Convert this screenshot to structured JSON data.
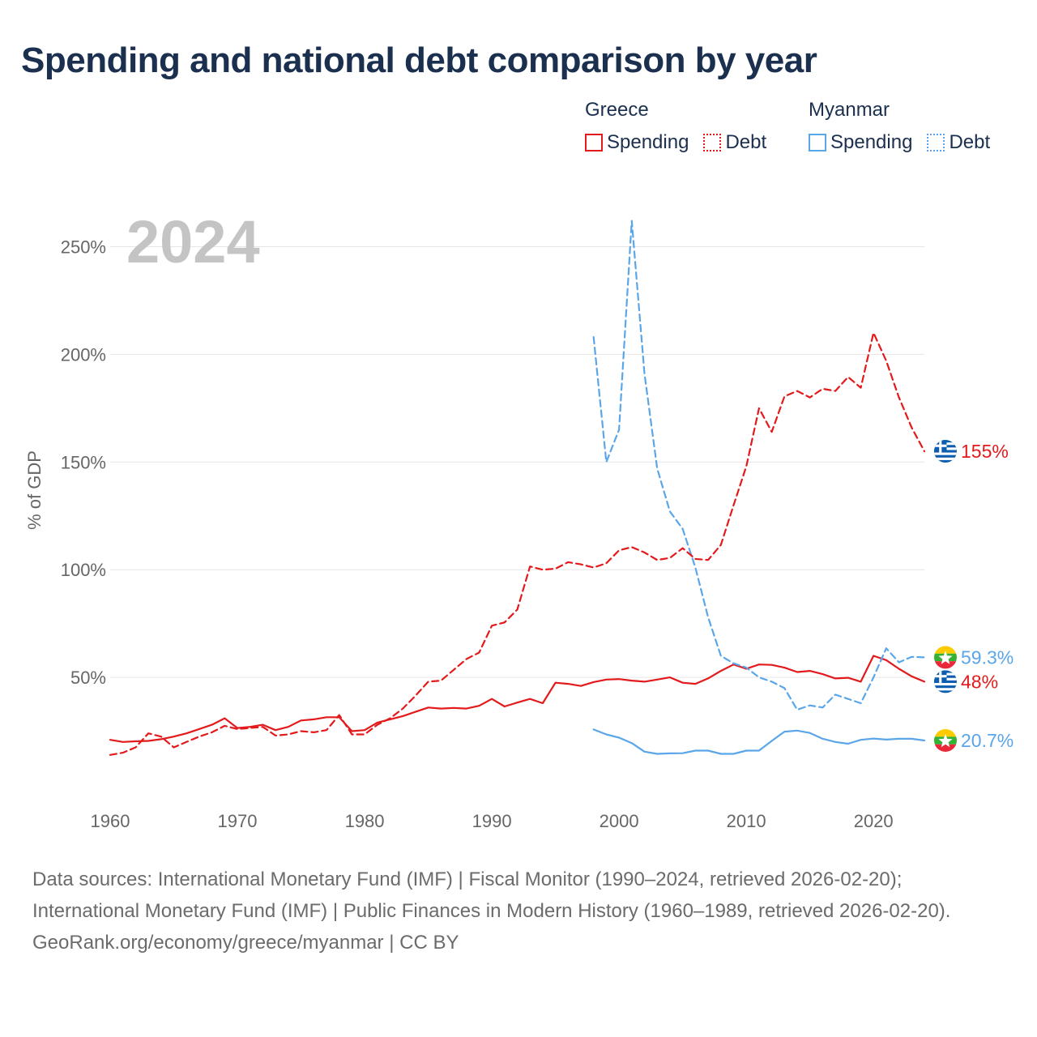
{
  "chart_data": {
    "type": "line",
    "title": "Spending and national debt comparison by year",
    "year_label": "2024",
    "ylabel": "% of GDP",
    "xlabel": "",
    "xlim": [
      1960,
      2024
    ],
    "ylim": [
      0,
      262
    ],
    "x_ticks": [
      1960,
      1970,
      1980,
      1990,
      2000,
      2010,
      2020
    ],
    "x_tick_labels": [
      "1960",
      "1970",
      "1980",
      "1990",
      "2000",
      "2010",
      "2020"
    ],
    "y_ticks": [
      50,
      100,
      150,
      200,
      250
    ],
    "y_tick_labels": [
      "50%",
      "100%",
      "150%",
      "200%",
      "250%"
    ],
    "colors": {
      "greece": "#e31a1c",
      "myanmar": "#5aa6e8"
    },
    "legend": {
      "greece": {
        "country": "Greece",
        "spending": "Spending",
        "debt": "Debt"
      },
      "myanmar": {
        "country": "Myanmar",
        "spending": "Spending",
        "debt": "Debt"
      }
    },
    "series": [
      {
        "name": "Greece Spending",
        "country": "greece",
        "dash": false,
        "start_year": 1960,
        "values": [
          21,
          20,
          20.3,
          20.5,
          21.3,
          22.5,
          24,
          26,
          28,
          31,
          26.5,
          27,
          28,
          25.5,
          27,
          30,
          30.5,
          31.5,
          31.5,
          25,
          25.5,
          29,
          30.5,
          32,
          34,
          36,
          35.5,
          35.8,
          35.5,
          36.8,
          40,
          36.5,
          38.3,
          40,
          38,
          47.5,
          47,
          46,
          47.8,
          49,
          49.2,
          48.5,
          48,
          49,
          50,
          47.5,
          47,
          49.5,
          53,
          56,
          54,
          56,
          55.8,
          54.5,
          52.5,
          53,
          51.5,
          49.5,
          49.8,
          48,
          60,
          58,
          54,
          50.5,
          48
        ],
        "end_label": "48%",
        "flag": "greece"
      },
      {
        "name": "Greece Debt",
        "country": "greece",
        "dash": true,
        "start_year": 1960,
        "values": [
          14,
          15,
          17.5,
          24,
          22.5,
          17.5,
          20,
          22.5,
          24.5,
          27.5,
          26,
          26.5,
          27,
          23,
          23.5,
          25,
          24.5,
          25.5,
          32.5,
          23.5,
          23.5,
          28,
          31,
          35.5,
          41.5,
          48,
          48.5,
          53.5,
          58.5,
          61.5,
          74,
          75.5,
          81.5,
          101.5,
          100,
          100.5,
          103.5,
          102.5,
          101,
          103,
          109,
          110.5,
          108,
          104.5,
          105.5,
          110,
          105,
          104.5,
          111.5,
          130,
          148,
          175,
          164,
          180.5,
          183,
          180,
          184,
          183,
          189.5,
          184.5,
          210,
          197,
          180,
          166,
          155
        ],
        "end_label": "155%",
        "flag": "greece"
      },
      {
        "name": "Myanmar Spending",
        "country": "myanmar",
        "dash": false,
        "start_year": 1998,
        "values": [
          25.8,
          23.5,
          22,
          19.5,
          15.5,
          14.5,
          14.7,
          14.8,
          16,
          16,
          14.5,
          14.5,
          16,
          16,
          20.5,
          24.8,
          25.3,
          24.2,
          21.5,
          20,
          19.2,
          21,
          21.6,
          21.1,
          21.5,
          21.5,
          20.7
        ],
        "end_label": "20.7%",
        "flag": "myanmar"
      },
      {
        "name": "Myanmar Debt",
        "country": "myanmar",
        "dash": true,
        "start_year": 1998,
        "values": [
          208,
          150,
          165,
          262,
          191,
          147,
          127,
          119,
          101,
          78,
          60,
          56.5,
          54.5,
          50,
          48,
          45,
          35,
          37,
          36,
          42,
          40,
          38,
          50,
          63.5,
          57,
          59.5,
          59.3
        ],
        "end_label": "59.3%",
        "flag": "myanmar"
      }
    ]
  },
  "footer": {
    "line1": "Data sources: International Monetary Fund (IMF) | Fiscal Monitor (1990–2024, retrieved 2026-02-20); International Monetary Fund (IMF) | Public Finances in Modern History (1960–1989, retrieved 2026-02-20).",
    "line2": "GeoRank.org/economy/greece/myanmar | CC BY"
  }
}
